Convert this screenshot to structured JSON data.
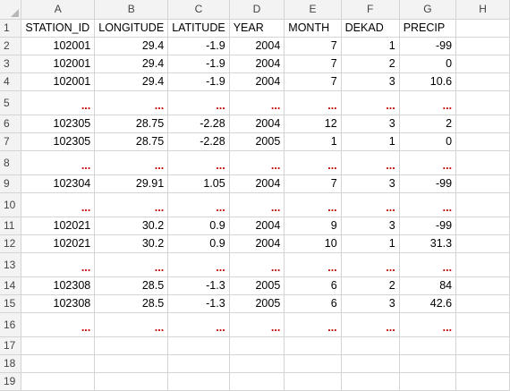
{
  "columns": [
    "A",
    "B",
    "C",
    "D",
    "E",
    "F",
    "G",
    "H"
  ],
  "ellipsis": "...",
  "colors": {
    "ellipsis": "#c00000",
    "gridline": "#d4d4d4",
    "header_bg": "#f3f3f3"
  },
  "rows": [
    {
      "num": "1",
      "kind": "header",
      "cells": [
        "STATION_ID",
        "LONGITUDE",
        "LATITUDE",
        "YEAR",
        "MONTH",
        "DEKAD",
        "PRECIP",
        ""
      ]
    },
    {
      "num": "2",
      "kind": "data",
      "cells": [
        "102001",
        "29.4",
        "-1.9",
        "2004",
        "7",
        "1",
        "-99",
        ""
      ]
    },
    {
      "num": "3",
      "kind": "data",
      "cells": [
        "102001",
        "29.4",
        "-1.9",
        "2004",
        "7",
        "2",
        "0",
        ""
      ]
    },
    {
      "num": "4",
      "kind": "data",
      "cells": [
        "102001",
        "29.4",
        "-1.9",
        "2004",
        "7",
        "3",
        "10.6",
        ""
      ]
    },
    {
      "num": "5",
      "kind": "dots",
      "cells": [
        "...",
        "...",
        "...",
        "...",
        "...",
        "...",
        "...",
        ""
      ]
    },
    {
      "num": "6",
      "kind": "data",
      "cells": [
        "102305",
        "28.75",
        "-2.28",
        "2004",
        "12",
        "3",
        "2",
        ""
      ]
    },
    {
      "num": "7",
      "kind": "data",
      "cells": [
        "102305",
        "28.75",
        "-2.28",
        "2005",
        "1",
        "1",
        "0",
        ""
      ]
    },
    {
      "num": "8",
      "kind": "dots",
      "cells": [
        "...",
        "...",
        "...",
        "...",
        "...",
        "...",
        "...",
        ""
      ]
    },
    {
      "num": "9",
      "kind": "data",
      "cells": [
        "102304",
        "29.91",
        "1.05",
        "2004",
        "7",
        "3",
        "-99",
        ""
      ]
    },
    {
      "num": "10",
      "kind": "dots",
      "cells": [
        "...",
        "...",
        "...",
        "...",
        "...",
        "...",
        "...",
        ""
      ]
    },
    {
      "num": "11",
      "kind": "data",
      "cells": [
        "102021",
        "30.2",
        "0.9",
        "2004",
        "9",
        "3",
        "-99",
        ""
      ]
    },
    {
      "num": "12",
      "kind": "data",
      "cells": [
        "102021",
        "30.2",
        "0.9",
        "2004",
        "10",
        "1",
        "31.3",
        ""
      ]
    },
    {
      "num": "13",
      "kind": "dots",
      "cells": [
        "...",
        "...",
        "...",
        "...",
        "...",
        "...",
        "...",
        ""
      ]
    },
    {
      "num": "14",
      "kind": "data",
      "cells": [
        "102308",
        "28.5",
        "-1.3",
        "2005",
        "6",
        "2",
        "84",
        ""
      ]
    },
    {
      "num": "15",
      "kind": "data",
      "cells": [
        "102308",
        "28.5",
        "-1.3",
        "2005",
        "6",
        "3",
        "42.6",
        ""
      ]
    },
    {
      "num": "16",
      "kind": "dots",
      "cells": [
        "...",
        "...",
        "...",
        "...",
        "...",
        "...",
        "...",
        ""
      ]
    },
    {
      "num": "17",
      "kind": "empty",
      "cells": [
        "",
        "",
        "",
        "",
        "",
        "",
        "",
        ""
      ]
    },
    {
      "num": "18",
      "kind": "empty",
      "cells": [
        "",
        "",
        "",
        "",
        "",
        "",
        "",
        ""
      ]
    },
    {
      "num": "19",
      "kind": "empty",
      "cells": [
        "",
        "",
        "",
        "",
        "",
        "",
        "",
        ""
      ]
    }
  ]
}
